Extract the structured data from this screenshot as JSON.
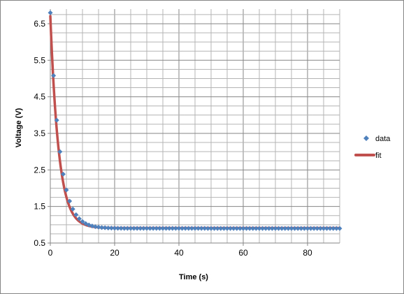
{
  "chart_data": {
    "type": "scatter",
    "title": "",
    "xlabel": "Time (s)",
    "ylabel": "Voltage (V)",
    "xlim": [
      0,
      90
    ],
    "ylim": [
      0.5,
      6.9
    ],
    "xticks": [
      0,
      20,
      40,
      60,
      80
    ],
    "yticks": [
      0.5,
      1.5,
      2.5,
      3.5,
      4.5,
      5.5,
      6.5
    ],
    "grid": true,
    "legend_position": "right",
    "series": [
      {
        "name": "data",
        "kind": "markers",
        "marker": "diamond",
        "color": "#4f81bd",
        "fn": {
          "a": 5.9,
          "tau": 2.9,
          "c": 0.9,
          "x0": 0,
          "x1": 90,
          "step": 1
        }
      },
      {
        "name": "fit",
        "kind": "line",
        "color": "#c0504d",
        "fn": {
          "a": 5.8,
          "tau": 2.6,
          "c": 0.91,
          "x0": 0,
          "x1": 90,
          "step": 0.25
        }
      }
    ]
  }
}
